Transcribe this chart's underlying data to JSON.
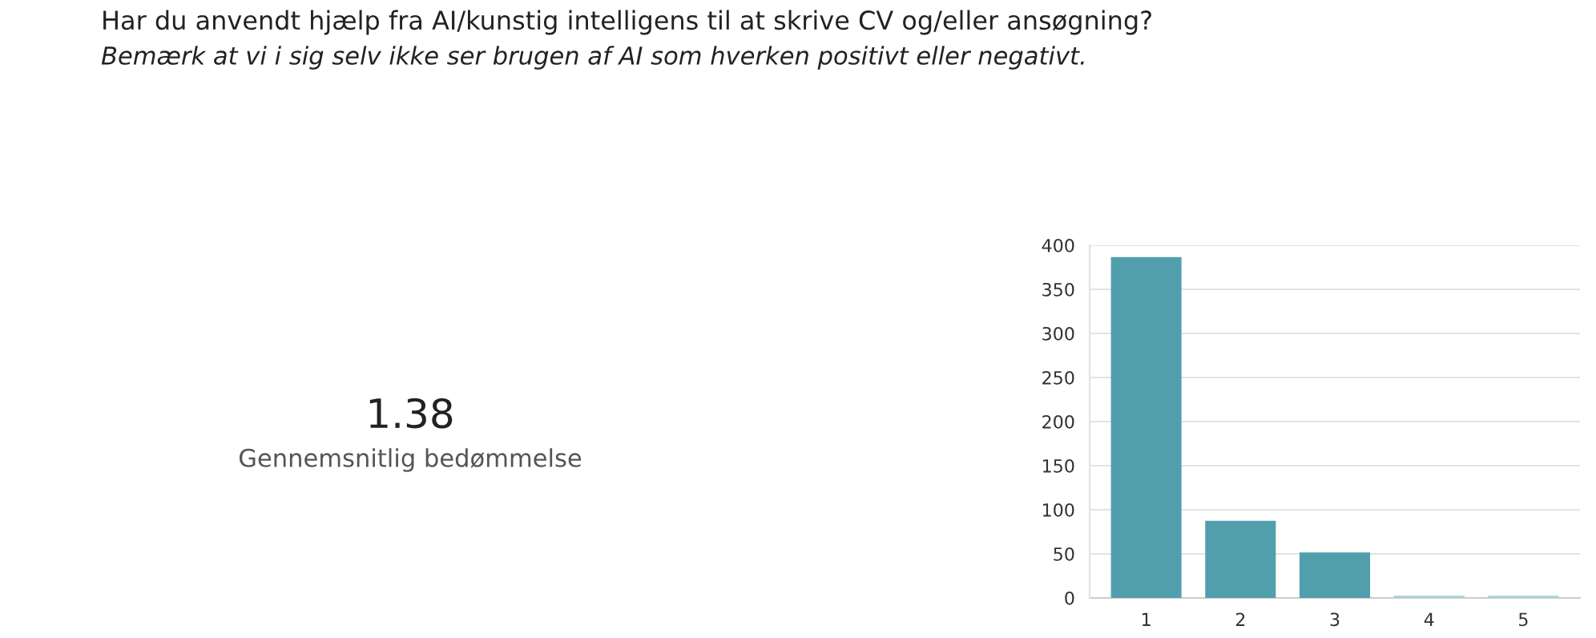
{
  "chart_data": [
    {
      "type": "other",
      "title": "Har du anvendt hjælp fra AI/kunstig intelligens til at skrive CV og/eller ansøgning?",
      "subtitle": "Bemærk at vi i sig selv ikke ser brugen af AI som hverken positivt eller negativt.",
      "annotations": [
        "1.38",
        "Gennemsnitlig bedømmelse"
      ]
    },
    {
      "type": "bar",
      "categories": [
        "1",
        "2",
        "3",
        "4",
        "5"
      ],
      "values": [
        385,
        86,
        50,
        1,
        1
      ],
      "colors": [
        "#519fad",
        "#519fad",
        "#519fad",
        "#a9d2d6",
        "#a9d2d6"
      ],
      "ylim": [
        0,
        400
      ],
      "yticks": [
        0,
        50,
        100,
        150,
        200,
        250,
        300,
        350,
        400
      ],
      "grid": "y"
    }
  ]
}
